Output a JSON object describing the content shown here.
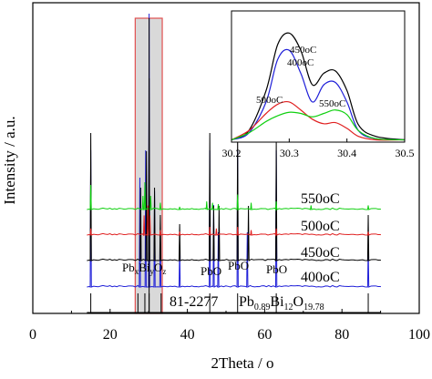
{
  "chart_data": {
    "type": "line",
    "xlabel": "2Theta / o",
    "ylabel": "Intensity / a.u.",
    "xlim": [
      0,
      100
    ],
    "xticks": [
      "0",
      "20",
      "40",
      "60",
      "80",
      "100"
    ],
    "grid": false,
    "series": [
      {
        "name": "400oC",
        "color": "#1f1fd8",
        "peaks": [
          [
            15.0,
            0.5
          ],
          [
            27.7,
            0.4
          ],
          [
            29.2,
            0.5
          ],
          [
            30.1,
            1.0
          ],
          [
            31.5,
            0.35
          ],
          [
            33.0,
            0.2
          ],
          [
            38.0,
            0.15
          ],
          [
            45.8,
            0.5
          ],
          [
            46.8,
            0.3
          ],
          [
            48.0,
            0.2
          ],
          [
            53.0,
            0.5
          ],
          [
            55.5,
            0.2
          ],
          [
            63.0,
            0.5
          ],
          [
            86.8,
            0.15
          ]
        ]
      },
      {
        "name": "450oC",
        "color": "#000000",
        "peaks": [
          [
            15.0,
            0.7
          ],
          [
            27.9,
            0.4
          ],
          [
            29.4,
            0.6
          ],
          [
            30.1,
            1.0
          ],
          [
            31.5,
            0.4
          ],
          [
            33.0,
            0.25
          ],
          [
            38.0,
            0.2
          ],
          [
            45.8,
            0.7
          ],
          [
            46.8,
            0.3
          ],
          [
            48.2,
            0.3
          ],
          [
            53.0,
            0.7
          ],
          [
            55.8,
            0.3
          ],
          [
            63.0,
            0.65
          ],
          [
            86.8,
            0.25
          ]
        ]
      },
      {
        "name": "500oC",
        "color": "#e02020",
        "peaks": [
          [
            15.0,
            0.2
          ],
          [
            28.8,
            0.6
          ],
          [
            29.8,
            0.9
          ],
          [
            30.3,
            0.6
          ],
          [
            33.0,
            0.15
          ],
          [
            38.0,
            0.1
          ],
          [
            45.8,
            0.25
          ],
          [
            47.5,
            0.2
          ],
          [
            53.0,
            0.25
          ],
          [
            56.5,
            0.15
          ],
          [
            63.0,
            0.2
          ],
          [
            86.8,
            0.1
          ]
        ]
      },
      {
        "name": "550oC",
        "color": "#10d010",
        "peaks": [
          [
            15.0,
            0.9
          ],
          [
            28.5,
            0.5
          ],
          [
            29.0,
            1.0
          ],
          [
            30.5,
            0.5
          ],
          [
            33.0,
            0.25
          ],
          [
            38.0,
            0.1
          ],
          [
            45.0,
            0.3
          ],
          [
            46.5,
            0.25
          ],
          [
            48.0,
            0.2
          ],
          [
            53.0,
            0.55
          ],
          [
            56.5,
            0.25
          ],
          [
            63.0,
            0.3
          ],
          [
            72.0,
            0.15
          ],
          [
            86.8,
            0.15
          ]
        ]
      }
    ],
    "curve_labels": {
      "s550": "550oC",
      "s500": "500oC",
      "s450": "450oC",
      "s400": "400oC"
    },
    "annotations": {
      "pb": "Pb",
      "pb_sub": "x",
      "bi": "Bi",
      "bi_sub": "y",
      "o": "O",
      "o_sub": "z",
      "pbo_1": "PbO",
      "pbo_2": "PbO",
      "pbo_3": "PbO"
    },
    "reference": {
      "pdf": "81-2277",
      "formula": {
        "pb": "Pb",
        "pb_sub": "0.89",
        "bi": "Bi",
        "bi_sub": "12",
        "o": "O",
        "o_sub": "19.78"
      },
      "sticks": [
        15.0,
        27.2,
        29.0,
        30.1,
        33.2,
        45.8,
        53.0,
        63.0,
        86.8
      ]
    },
    "highlight_range": [
      26.5,
      33.5
    ],
    "inset": {
      "xlim": [
        30.2,
        30.5
      ],
      "xticks": [
        "30.2",
        "30.3",
        "30.4",
        "30.5"
      ],
      "labels": {
        "s450": "450oC",
        "s400": "400oC",
        "s500": "500oC",
        "s550": "550oC"
      },
      "series": [
        {
          "name": "450oC",
          "color": "#000000",
          "x": [
            30.2,
            30.23,
            30.26,
            30.28,
            30.3,
            30.32,
            30.34,
            30.36,
            30.38,
            30.4,
            30.42,
            30.45,
            30.5
          ],
          "y": [
            0.02,
            0.1,
            0.45,
            0.85,
            0.95,
            0.8,
            0.5,
            0.6,
            0.62,
            0.45,
            0.15,
            0.05,
            0.02
          ]
        },
        {
          "name": "400oC",
          "color": "#1f1fd8",
          "x": [
            30.2,
            30.23,
            30.26,
            30.28,
            30.3,
            30.32,
            30.34,
            30.36,
            30.38,
            30.4,
            30.42,
            30.45,
            30.5
          ],
          "y": [
            0.02,
            0.08,
            0.35,
            0.72,
            0.8,
            0.6,
            0.35,
            0.5,
            0.52,
            0.35,
            0.1,
            0.03,
            0.02
          ]
        },
        {
          "name": "500oC",
          "color": "#e02020",
          "x": [
            30.2,
            30.23,
            30.26,
            30.28,
            30.3,
            30.32,
            30.34,
            30.36,
            30.38,
            30.4,
            30.42,
            30.45,
            30.5
          ],
          "y": [
            0.02,
            0.1,
            0.25,
            0.33,
            0.35,
            0.28,
            0.2,
            0.16,
            0.17,
            0.12,
            0.05,
            0.02,
            0.02
          ]
        },
        {
          "name": "550oC",
          "color": "#10d010",
          "x": [
            30.2,
            30.23,
            30.26,
            30.28,
            30.3,
            30.32,
            30.34,
            30.36,
            30.38,
            30.4,
            30.42,
            30.45,
            30.5
          ],
          "y": [
            0.02,
            0.08,
            0.18,
            0.23,
            0.26,
            0.25,
            0.22,
            0.25,
            0.28,
            0.24,
            0.1,
            0.03,
            0.02
          ]
        }
      ]
    }
  }
}
